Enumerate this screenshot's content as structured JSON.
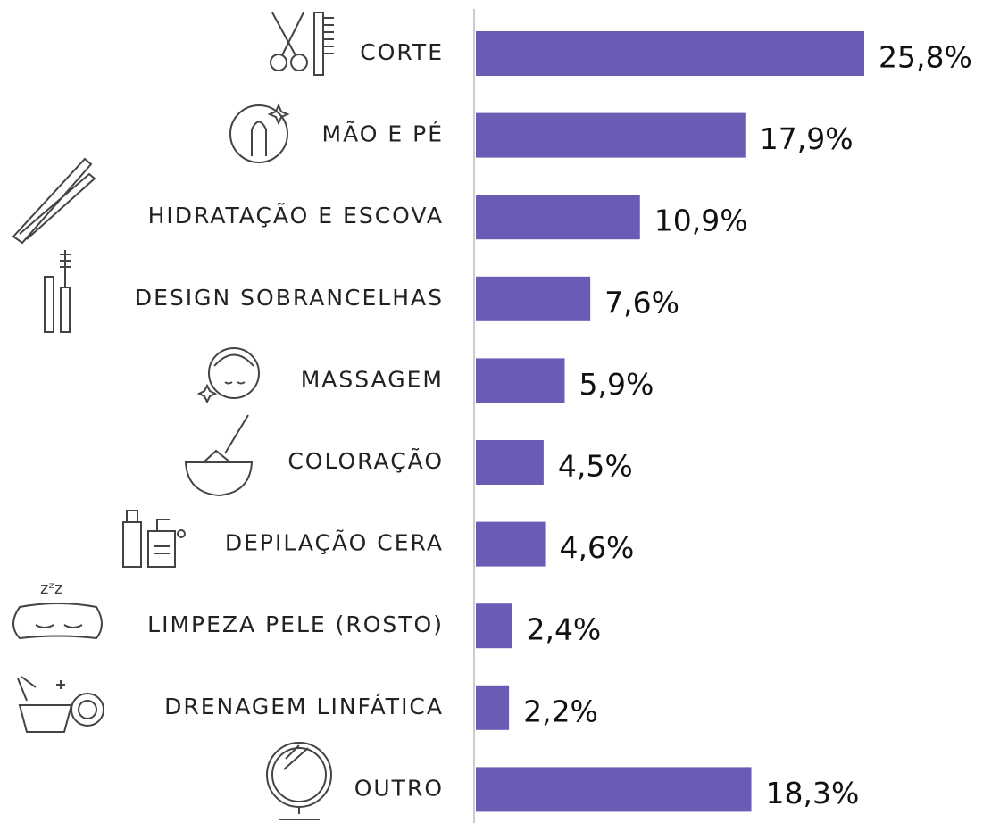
{
  "chart_data": {
    "type": "bar",
    "orientation": "horizontal",
    "color": "#6a5bb5",
    "categories": [
      "CORTE",
      "MÃO E PÉ",
      "HIDRATAÇÃO E ESCOVA",
      "DESIGN SOBRANCELHAS",
      "MASSAGEM",
      "COLORAÇÃO",
      "DEPILAÇÃO CERA",
      "LIMPEZA PELE (ROSTO)",
      "DRENAGEM LINFÁTICA",
      "OUTRO"
    ],
    "values": [
      25.8,
      17.9,
      10.9,
      7.6,
      5.9,
      4.5,
      4.6,
      2.4,
      2.2,
      18.3
    ],
    "value_labels": [
      "25,8%",
      "17,9%",
      "10,9%",
      "7,6%",
      "5,9%",
      "4,5%",
      "4,6%",
      "2,4%",
      "2,2%",
      "18,3%"
    ]
  }
}
